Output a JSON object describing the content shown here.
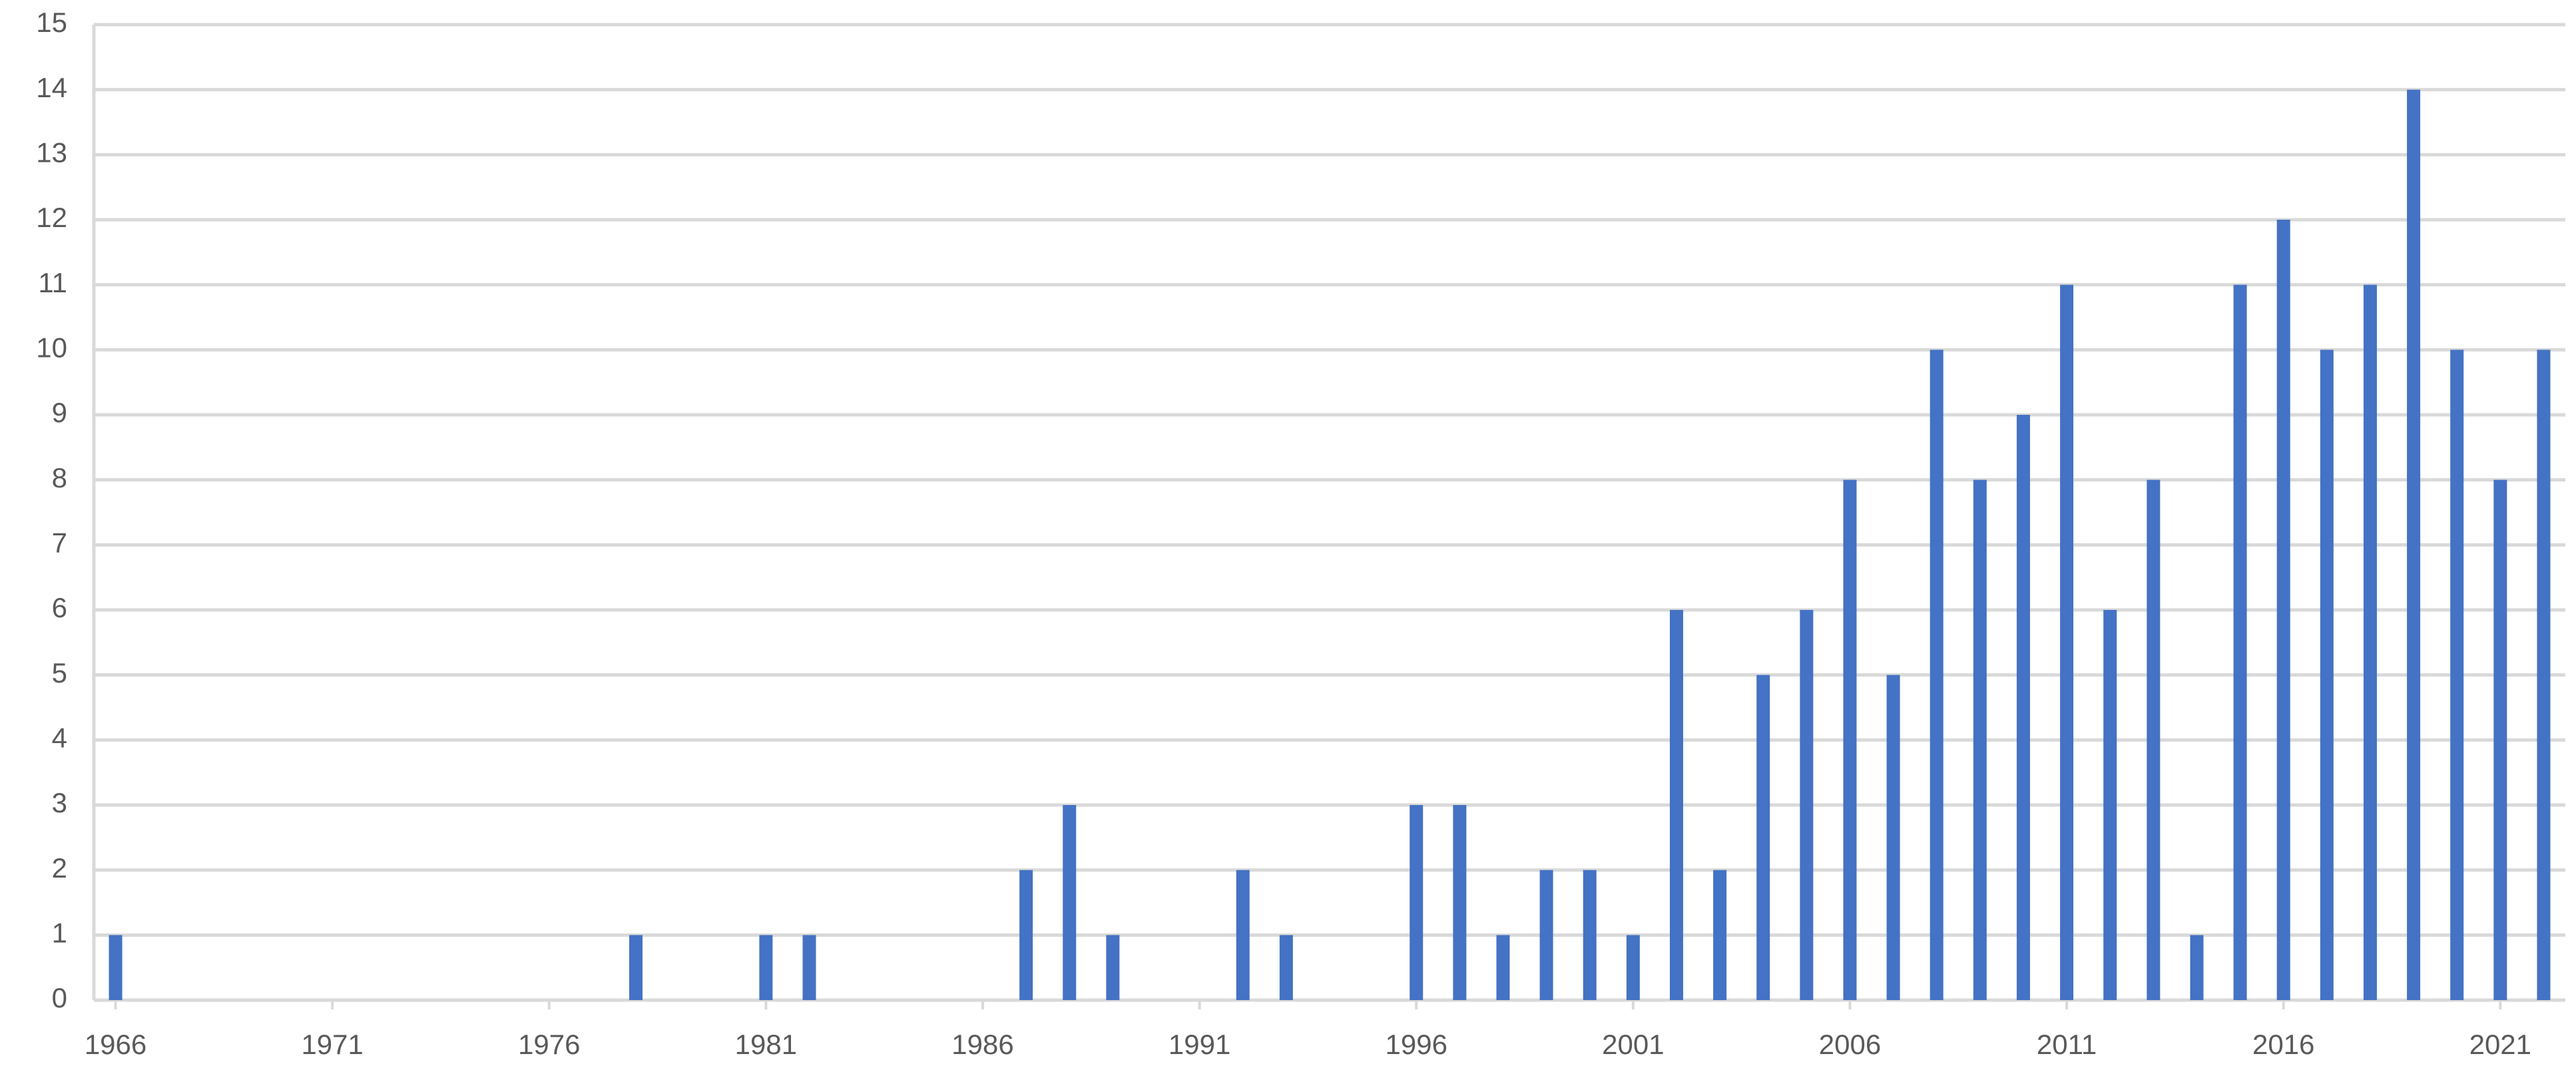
{
  "chart_data": {
    "type": "bar",
    "x": [
      1966,
      1967,
      1968,
      1969,
      1970,
      1971,
      1972,
      1973,
      1974,
      1975,
      1976,
      1977,
      1978,
      1979,
      1980,
      1981,
      1982,
      1983,
      1984,
      1985,
      1986,
      1987,
      1988,
      1989,
      1990,
      1991,
      1992,
      1993,
      1994,
      1995,
      1996,
      1997,
      1998,
      1999,
      2000,
      2001,
      2002,
      2003,
      2004,
      2005,
      2006,
      2007,
      2008,
      2009,
      2010,
      2011,
      2012,
      2013,
      2014,
      2015,
      2016,
      2017,
      2018,
      2019,
      2020,
      2021,
      2022
    ],
    "values": [
      1,
      0,
      0,
      0,
      0,
      0,
      0,
      0,
      0,
      0,
      0,
      0,
      1,
      0,
      0,
      1,
      1,
      0,
      0,
      0,
      0,
      2,
      3,
      1,
      0,
      0,
      2,
      1,
      0,
      0,
      3,
      3,
      1,
      2,
      2,
      1,
      6,
      2,
      5,
      6,
      8,
      5,
      10,
      8,
      9,
      11,
      6,
      8,
      1,
      11,
      12,
      10,
      11,
      14,
      10,
      8,
      10
    ],
    "color": "#4472c4",
    "xlim": [
      1965.5,
      2022.5
    ],
    "xticks": [
      1966,
      1971,
      1976,
      1981,
      1986,
      1991,
      1996,
      2001,
      2006,
      2011,
      2016,
      2021
    ],
    "ylim": [
      0,
      15
    ],
    "yticks": [
      0,
      1,
      2,
      3,
      4,
      5,
      6,
      7,
      8,
      9,
      10,
      11,
      12,
      13,
      14,
      15
    ],
    "grid": true
  }
}
